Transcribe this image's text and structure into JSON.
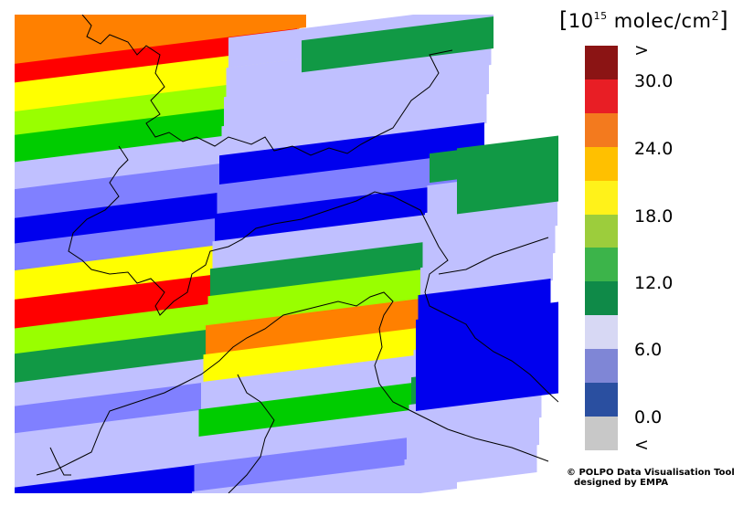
{
  "legend": {
    "unit_prefix": "10",
    "unit_exponent": "15",
    "unit_main": " molec/cm",
    "unit_sq": "2",
    "scale_colors": [
      "#c8c8c8",
      "#2a4fa0",
      "#7f86d6",
      "#d7d8f4",
      "#0f8a48",
      "#3cb44a",
      "#9ccd3c",
      "#fff21a",
      "#ffc000",
      "#f37a1e",
      "#e81e25",
      "#8b1414"
    ],
    "labels": [
      ">",
      "30.0",
      "24.0",
      "18.0",
      "12.0",
      "6.0",
      "0.0",
      "<"
    ]
  },
  "map_colors": {
    "orange": "#ff8000",
    "red": "#ff0000",
    "yellow": "#ffff00",
    "lime": "#99ff00",
    "green": "#00cc00",
    "darkgreen": "#119945",
    "paleblue": "#c0c0ff",
    "midblue": "#8080ff",
    "blue": "#0000ee"
  },
  "credit": {
    "line1": "© POLPO Data Visualisation Tool",
    "line2": "designed by EMPA"
  }
}
